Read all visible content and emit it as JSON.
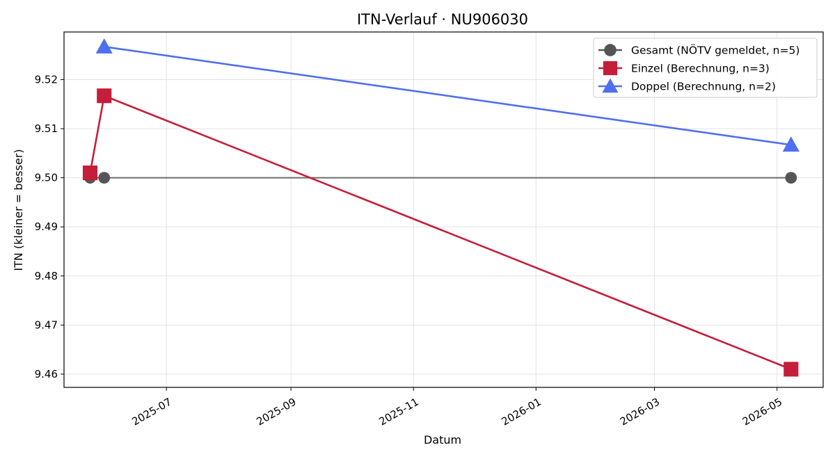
{
  "chart_data": {
    "type": "line",
    "title": "ITN-Verlauf · NU906030",
    "xlabel": "Datum",
    "ylabel": "ITN  (kleiner = besser)",
    "x_axis_type": "date",
    "xlim": [
      "2025-05-11",
      "2026-05-24"
    ],
    "ylim": [
      9.4573,
      9.5297
    ],
    "x_ticks": [
      "2025-07-01",
      "2025-09-01",
      "2025-11-01",
      "2026-01-01",
      "2026-03-01",
      "2026-05-01"
    ],
    "x_tick_labels": [
      "2025-07",
      "2025-09",
      "2025-11",
      "2026-01",
      "2026-03",
      "2026-05"
    ],
    "y_ticks": [
      9.46,
      9.47,
      9.48,
      9.49,
      9.5,
      9.51,
      9.52
    ],
    "y_tick_labels": [
      "9.46",
      "9.47",
      "9.48",
      "9.49",
      "9.50",
      "9.51",
      "9.52"
    ],
    "grid": true,
    "legend_position": "top-right",
    "series": [
      {
        "name": "Gesamt (NÖTV gemeldet, n=5)",
        "color": "#555555",
        "marker": "circle",
        "points": [
          {
            "x": "2025-05-24",
            "y": 9.5
          },
          {
            "x": "2025-05-31",
            "y": 9.5
          },
          {
            "x": "2026-05-08",
            "y": 9.5
          }
        ]
      },
      {
        "name": "Einzel (Berechnung, n=3)",
        "color": "#c41e3a",
        "marker": "square",
        "points": [
          {
            "x": "2025-05-24",
            "y": 9.501
          },
          {
            "x": "2025-05-31",
            "y": 9.5167
          },
          {
            "x": "2026-05-08",
            "y": 9.461
          }
        ]
      },
      {
        "name": "Doppel (Berechnung, n=2)",
        "color": "#4f6ff0",
        "marker": "triangle",
        "points": [
          {
            "x": "2025-05-31",
            "y": 9.5267
          },
          {
            "x": "2026-05-08",
            "y": 9.5067
          }
        ]
      }
    ]
  }
}
